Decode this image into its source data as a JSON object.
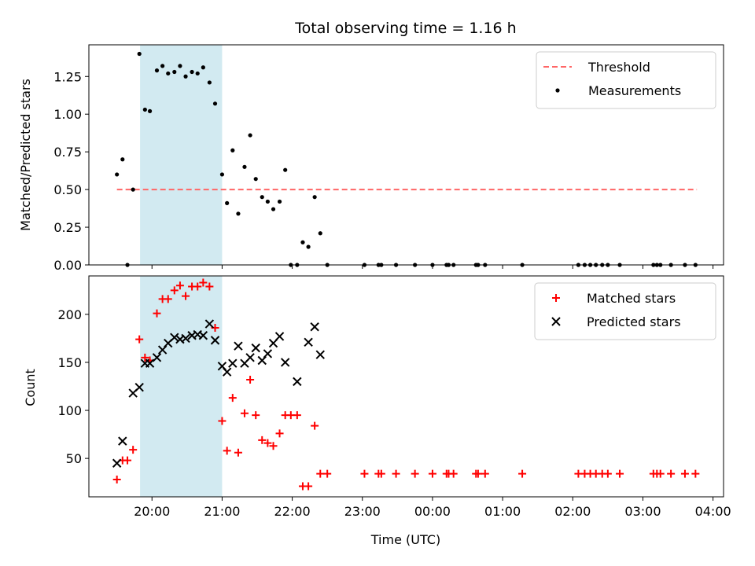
{
  "chart_data": {
    "title": "Total observing time = 1.16 h",
    "xlabel": "Time (UTC)",
    "x_unit": "hours UTC (values above 24 are after midnight)",
    "xlim": [
      19.1,
      28.15
    ],
    "x_ticks": [
      {
        "value": 20,
        "label": "20:00"
      },
      {
        "value": 21,
        "label": "21:00"
      },
      {
        "value": 22,
        "label": "22:00"
      },
      {
        "value": 23,
        "label": "23:00"
      },
      {
        "value": 24,
        "label": "00:00"
      },
      {
        "value": 25,
        "label": "01:00"
      },
      {
        "value": 26,
        "label": "02:00"
      },
      {
        "value": 27,
        "label": "03:00"
      },
      {
        "value": 28,
        "label": "04:00"
      }
    ],
    "highlight_span": [
      19.83,
      21.0
    ],
    "highlight_color": "#add8e6",
    "panels": [
      {
        "type": "scatter",
        "ylabel": "Matched/Predicted stars",
        "ylim": [
          0,
          1.46
        ],
        "y_ticks": [
          {
            "value": 0,
            "label": "0.00"
          },
          {
            "value": 0.25,
            "label": "0.25"
          },
          {
            "value": 0.5,
            "label": "0.50"
          },
          {
            "value": 0.75,
            "label": "0.75"
          },
          {
            "value": 1.0,
            "label": "1.00"
          },
          {
            "value": 1.25,
            "label": "1.25"
          }
        ],
        "legend_position": "top-right",
        "threshold": {
          "name": "Threshold",
          "y": 0.5,
          "x_range": [
            19.5,
            27.77
          ],
          "color": "#ff6666"
        },
        "series": [
          {
            "name": "Measurements",
            "marker": "dot",
            "color": "#000000",
            "points": [
              [
                19.5,
                0.6
              ],
              [
                19.58,
                0.7
              ],
              [
                19.65,
                0.0
              ],
              [
                19.73,
                0.5
              ],
              [
                19.82,
                1.4
              ],
              [
                19.9,
                1.03
              ],
              [
                19.97,
                1.02
              ],
              [
                20.07,
                1.29
              ],
              [
                20.15,
                1.32
              ],
              [
                20.23,
                1.27
              ],
              [
                20.32,
                1.28
              ],
              [
                20.4,
                1.32
              ],
              [
                20.48,
                1.25
              ],
              [
                20.57,
                1.28
              ],
              [
                20.65,
                1.27
              ],
              [
                20.73,
                1.31
              ],
              [
                20.82,
                1.21
              ],
              [
                20.9,
                1.07
              ],
              [
                21.0,
                0.6
              ],
              [
                21.07,
                0.41
              ],
              [
                21.15,
                0.76
              ],
              [
                21.23,
                0.34
              ],
              [
                21.32,
                0.65
              ],
              [
                21.4,
                0.86
              ],
              [
                21.48,
                0.57
              ],
              [
                21.57,
                0.45
              ],
              [
                21.65,
                0.42
              ],
              [
                21.73,
                0.37
              ],
              [
                21.82,
                0.42
              ],
              [
                21.9,
                0.63
              ],
              [
                21.98,
                0.0
              ],
              [
                22.07,
                0.0
              ],
              [
                22.15,
                0.15
              ],
              [
                22.23,
                0.12
              ],
              [
                22.32,
                0.45
              ],
              [
                22.4,
                0.21
              ],
              [
                22.5,
                0.0
              ],
              [
                23.03,
                0.0
              ],
              [
                23.23,
                0.0
              ],
              [
                23.27,
                0.0
              ],
              [
                23.48,
                0.0
              ],
              [
                23.75,
                0.0
              ],
              [
                24.0,
                0.0
              ],
              [
                24.2,
                0.0
              ],
              [
                24.23,
                0.0
              ],
              [
                24.3,
                0.0
              ],
              [
                24.62,
                0.0
              ],
              [
                24.65,
                0.0
              ],
              [
                24.75,
                0.0
              ],
              [
                25.28,
                0.0
              ],
              [
                26.08,
                0.0
              ],
              [
                26.17,
                0.0
              ],
              [
                26.25,
                0.0
              ],
              [
                26.33,
                0.0
              ],
              [
                26.42,
                0.0
              ],
              [
                26.5,
                0.0
              ],
              [
                26.67,
                0.0
              ],
              [
                27.15,
                0.0
              ],
              [
                27.2,
                0.0
              ],
              [
                27.25,
                0.0
              ],
              [
                27.4,
                0.0
              ],
              [
                27.6,
                0.0
              ],
              [
                27.75,
                0.0
              ]
            ]
          }
        ]
      },
      {
        "type": "scatter",
        "ylabel": "Count",
        "ylim": [
          10,
          240
        ],
        "y_ticks": [
          {
            "value": 50,
            "label": "50"
          },
          {
            "value": 100,
            "label": "100"
          },
          {
            "value": 150,
            "label": "150"
          },
          {
            "value": 200,
            "label": "200"
          }
        ],
        "legend_position": "top-right",
        "series": [
          {
            "name": "Matched stars",
            "marker": "plus",
            "color": "#ff0000",
            "points": [
              [
                19.5,
                28
              ],
              [
                19.58,
                48
              ],
              [
                19.65,
                48
              ],
              [
                19.73,
                59
              ],
              [
                19.82,
                174
              ],
              [
                19.9,
                155
              ],
              [
                19.97,
                152
              ],
              [
                20.07,
                201
              ],
              [
                20.15,
                216
              ],
              [
                20.23,
                216
              ],
              [
                20.32,
                225
              ],
              [
                20.4,
                230
              ],
              [
                20.48,
                219
              ],
              [
                20.57,
                229
              ],
              [
                20.65,
                229
              ],
              [
                20.73,
                233
              ],
              [
                20.82,
                229
              ],
              [
                20.9,
                186
              ],
              [
                21.0,
                89
              ],
              [
                21.07,
                58
              ],
              [
                21.15,
                113
              ],
              [
                21.23,
                56
              ],
              [
                21.32,
                97
              ],
              [
                21.4,
                132
              ],
              [
                21.48,
                95
              ],
              [
                21.57,
                69
              ],
              [
                21.65,
                66
              ],
              [
                21.73,
                63
              ],
              [
                21.82,
                76
              ],
              [
                21.9,
                95
              ],
              [
                21.98,
                95
              ],
              [
                22.07,
                95
              ],
              [
                22.15,
                21
              ],
              [
                22.23,
                21
              ],
              [
                22.32,
                84
              ],
              [
                22.4,
                34
              ],
              [
                22.5,
                34
              ],
              [
                23.03,
                34
              ],
              [
                23.23,
                34
              ],
              [
                23.27,
                34
              ],
              [
                23.48,
                34
              ],
              [
                23.75,
                34
              ],
              [
                24.0,
                34
              ],
              [
                24.2,
                34
              ],
              [
                24.23,
                34
              ],
              [
                24.3,
                34
              ],
              [
                24.62,
                34
              ],
              [
                24.65,
                34
              ],
              [
                24.75,
                34
              ],
              [
                25.28,
                34
              ],
              [
                26.08,
                34
              ],
              [
                26.17,
                34
              ],
              [
                26.25,
                34
              ],
              [
                26.33,
                34
              ],
              [
                26.42,
                34
              ],
              [
                26.5,
                34
              ],
              [
                26.67,
                34
              ],
              [
                27.15,
                34
              ],
              [
                27.2,
                34
              ],
              [
                27.25,
                34
              ],
              [
                27.4,
                34
              ],
              [
                27.6,
                34
              ],
              [
                27.75,
                34
              ]
            ]
          },
          {
            "name": "Predicted stars",
            "marker": "x",
            "color": "#000000",
            "points": [
              [
                19.5,
                45
              ],
              [
                19.58,
                68
              ],
              [
                19.73,
                118
              ],
              [
                19.82,
                124
              ],
              [
                19.9,
                149
              ],
              [
                19.97,
                149
              ],
              [
                20.07,
                155
              ],
              [
                20.15,
                163
              ],
              [
                20.23,
                170
              ],
              [
                20.32,
                176
              ],
              [
                20.4,
                174
              ],
              [
                20.48,
                175
              ],
              [
                20.57,
                178
              ],
              [
                20.65,
                179
              ],
              [
                20.73,
                178
              ],
              [
                20.82,
                190
              ],
              [
                20.9,
                173
              ],
              [
                21.0,
                146
              ],
              [
                21.07,
                140
              ],
              [
                21.15,
                149
              ],
              [
                21.23,
                167
              ],
              [
                21.32,
                149
              ],
              [
                21.4,
                155
              ],
              [
                21.48,
                165
              ],
              [
                21.57,
                152
              ],
              [
                21.65,
                159
              ],
              [
                21.73,
                170
              ],
              [
                21.82,
                177
              ],
              [
                21.9,
                150
              ],
              [
                22.07,
                130
              ],
              [
                22.23,
                171
              ],
              [
                22.32,
                187
              ],
              [
                22.4,
                158
              ]
            ]
          }
        ]
      }
    ]
  }
}
